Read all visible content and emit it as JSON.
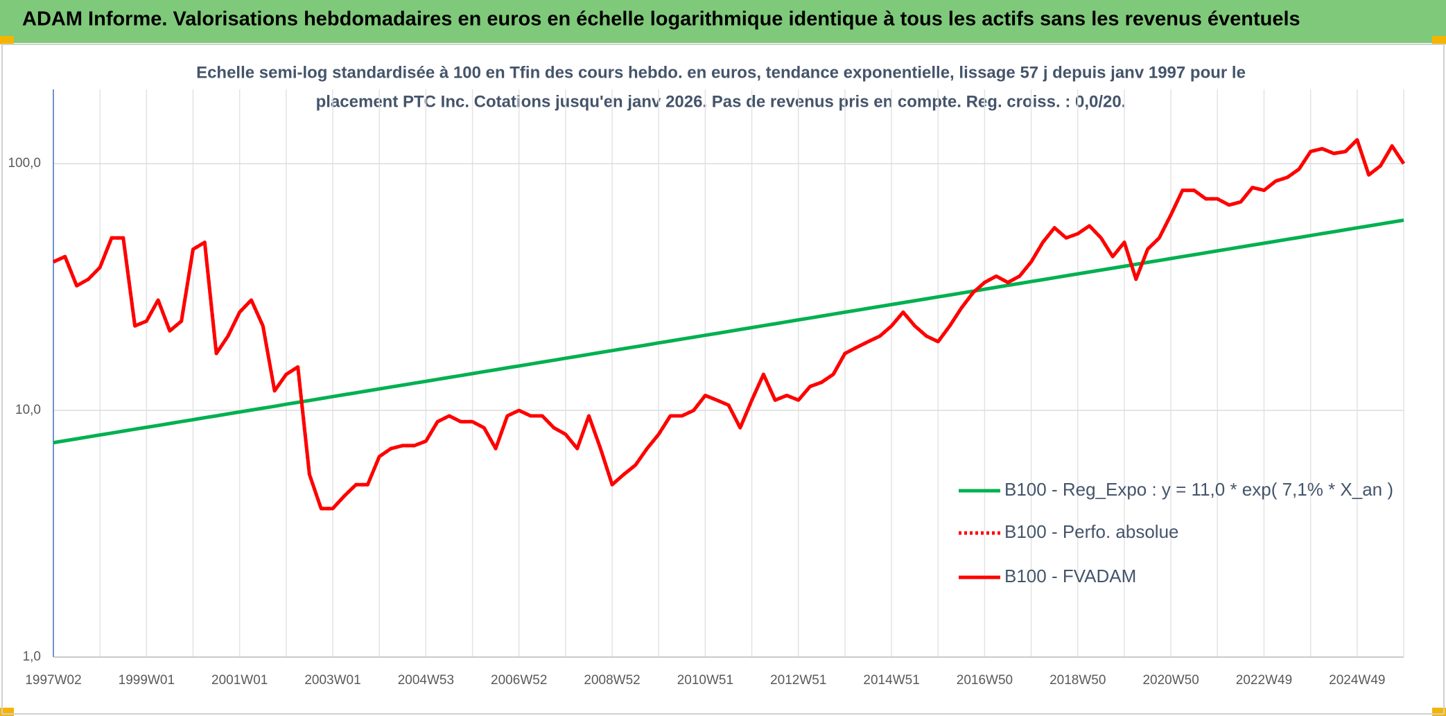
{
  "chart_data": {
    "type": "line",
    "title": "ADAM Informe. Valorisations hebdomadaires en euros en échelle logarithmique identique à tous les actifs sans les revenus éventuels",
    "subtitle": [
      "Echelle semi-log standardisée à 100 en Tfin des cours hebdo. en euros, tendance exponentielle, lissage 57 j depuis janv 1997 pour le",
      "placement PTC Inc. Cotations jusqu'en janv 2026. Pas de revenus pris en compte. Reg. croiss. : 0,0/20."
    ],
    "log_scale": true,
    "grid": true,
    "legend_position": "lower right",
    "categories": [
      "1997W02",
      null,
      null,
      null,
      null,
      null,
      null,
      null,
      "1999W01",
      null,
      null,
      null,
      null,
      null,
      null,
      null,
      "2001W01",
      null,
      null,
      null,
      null,
      null,
      null,
      null,
      "2003W01",
      null,
      null,
      null,
      null,
      null,
      null,
      null,
      "2004W53",
      null,
      null,
      null,
      null,
      null,
      null,
      null,
      "2006W52",
      null,
      null,
      null,
      null,
      null,
      null,
      null,
      "2008W52",
      null,
      null,
      null,
      null,
      null,
      null,
      null,
      "2010W51",
      null,
      null,
      null,
      null,
      null,
      null,
      null,
      "2012W51",
      null,
      null,
      null,
      null,
      null,
      null,
      null,
      "2014W51",
      null,
      null,
      null,
      null,
      null,
      null,
      null,
      "2016W50",
      null,
      null,
      null,
      null,
      null,
      null,
      null,
      "2018W50",
      null,
      null,
      null,
      null,
      null,
      null,
      null,
      "2020W50",
      null,
      null,
      null,
      null,
      null,
      null,
      null,
      "2022W49",
      null,
      null,
      null,
      null,
      null,
      null,
      null,
      "2024W49",
      null,
      null,
      null,
      null
    ],
    "ylim": [
      1,
      200
    ],
    "yticks": [
      {
        "value": 1,
        "label": "1,0"
      },
      {
        "value": 10,
        "label": "10,0"
      },
      {
        "value": 100,
        "label": "100,0"
      }
    ],
    "series": [
      {
        "name": "B100 - Reg_Expo : y = 11,0 * exp( 7,1% *  X_an )",
        "color": "#00b050",
        "dash": "solid",
        "values": [
          7.4,
          7.53,
          7.67,
          7.81,
          7.95,
          8.09,
          8.24,
          8.39,
          8.54,
          8.69,
          8.85,
          9.01,
          9.17,
          9.34,
          9.5,
          9.68,
          9.85,
          10.03,
          10.21,
          10.39,
          10.59,
          10.78,
          10.97,
          11.17,
          11.37,
          11.58,
          11.78,
          12.0,
          12.22,
          12.44,
          12.66,
          12.89,
          13.12,
          13.36,
          13.6,
          13.84,
          14.1,
          14.35,
          14.61,
          14.88,
          15.14,
          15.41,
          15.69,
          15.97,
          16.27,
          16.56,
          16.86,
          17.17,
          17.47,
          17.79,
          18.11,
          18.43,
          18.77,
          19.11,
          19.45,
          19.8,
          20.16,
          20.52,
          20.89,
          21.27,
          21.66,
          22.05,
          22.45,
          22.85,
          23.27,
          23.69,
          24.12,
          24.55,
          25.0,
          25.45,
          25.91,
          26.38,
          26.85,
          27.34,
          27.83,
          28.33,
          28.84,
          29.36,
          29.89,
          30.43,
          30.98,
          31.54,
          32.11,
          32.69,
          33.28,
          33.88,
          34.49,
          35.11,
          35.75,
          36.39,
          37.05,
          37.72,
          38.41,
          39.1,
          39.81,
          40.52,
          41.26,
          42.0,
          42.76,
          43.53,
          44.32,
          45.12,
          45.93,
          46.76,
          47.61,
          48.47,
          49.34,
          50.23,
          51.14,
          52.06,
          53.0,
          53.96,
          54.94,
          55.93,
          56.94,
          57.97,
          59.02
        ]
      },
      {
        "name": "B100 - Perfo. absolue",
        "color": "#ff0000",
        "dash": "dotted",
        "values": [
          40,
          42,
          32,
          34,
          38,
          50,
          50,
          22,
          23,
          28,
          21,
          23,
          45,
          48,
          17,
          20,
          25,
          28,
          22,
          12,
          14,
          15,
          5.5,
          4,
          4,
          4.5,
          5,
          5,
          6.5,
          7,
          7.2,
          7.2,
          7.5,
          9,
          9.5,
          9,
          9,
          8.5,
          7,
          9.5,
          10,
          9.5,
          9.5,
          8.5,
          8,
          7,
          9.5,
          7,
          5,
          5.5,
          6,
          7,
          8,
          9.5,
          9.5,
          10,
          11.5,
          11,
          10.5,
          8.5,
          11,
          14,
          11,
          11.5,
          11,
          12.5,
          13,
          14,
          17,
          18,
          19,
          20,
          22,
          25,
          22,
          20,
          19,
          22,
          26,
          30,
          33,
          35,
          33,
          35,
          40,
          48,
          55,
          50,
          52,
          56,
          50,
          42,
          48,
          34,
          45,
          50,
          62,
          78,
          78,
          72,
          72,
          68,
          70,
          80,
          78,
          85,
          88,
          95,
          112,
          115,
          110,
          112,
          125,
          90,
          98,
          118,
          100
        ]
      },
      {
        "name": "B100 - FVADAM",
        "color": "#ff0000",
        "dash": "solid",
        "values": [
          40,
          42,
          32,
          34,
          38,
          50,
          50,
          22,
          23,
          28,
          21,
          23,
          45,
          48,
          17,
          20,
          25,
          28,
          22,
          12,
          14,
          15,
          5.5,
          4,
          4,
          4.5,
          5,
          5,
          6.5,
          7,
          7.2,
          7.2,
          7.5,
          9,
          9.5,
          9,
          9,
          8.5,
          7,
          9.5,
          10,
          9.5,
          9.5,
          8.5,
          8,
          7,
          9.5,
          7,
          5,
          5.5,
          6,
          7,
          8,
          9.5,
          9.5,
          10,
          11.5,
          11,
          10.5,
          8.5,
          11,
          14,
          11,
          11.5,
          11,
          12.5,
          13,
          14,
          17,
          18,
          19,
          20,
          22,
          25,
          22,
          20,
          19,
          22,
          26,
          30,
          33,
          35,
          33,
          35,
          40,
          48,
          55,
          50,
          52,
          56,
          50,
          42,
          48,
          34,
          45,
          50,
          62,
          78,
          78,
          72,
          72,
          68,
          70,
          80,
          78,
          85,
          88,
          95,
          112,
          115,
          110,
          112,
          125,
          90,
          98,
          118,
          100
        ]
      }
    ]
  }
}
